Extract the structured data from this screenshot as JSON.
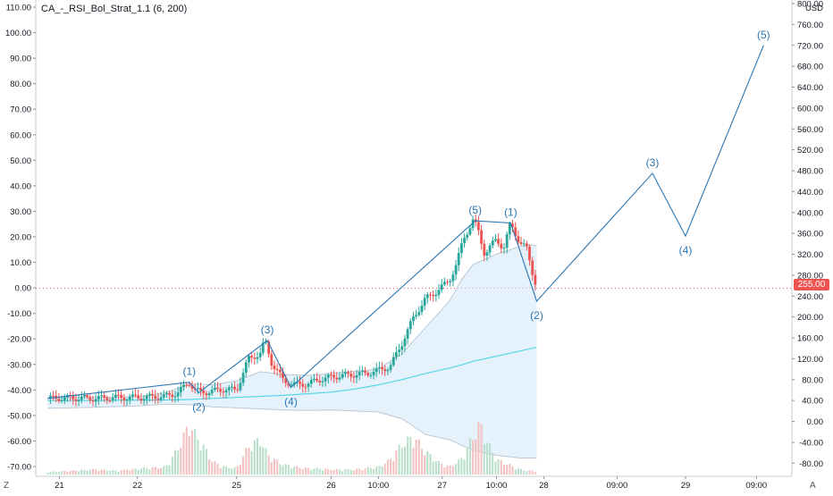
{
  "study_title": "CA_-_RSI_Bol_Strat_1.1 (6, 200)",
  "corner_left": "Z",
  "corner_right": "A",
  "colors": {
    "up": "#26a69a",
    "down": "#ef5350",
    "wave": "#2a75b3",
    "band_fill": "#cfe8f7",
    "band_line": "#bcc8d4",
    "ma200": "#55d6e6",
    "vol_up": "#b7dfc9",
    "vol_down": "#f5c0c0",
    "price_line": "#ef5350"
  },
  "chart_data": {
    "type": "candlestick",
    "title": "CA_-_RSI_Bol_Strat_1.1 (6, 200)",
    "right_axis": {
      "label": "USD",
      "ticks": [
        -80,
        -40,
        0,
        40,
        80,
        120,
        160,
        200,
        240,
        280,
        320,
        360,
        400,
        440,
        480,
        520,
        560,
        600,
        640,
        680,
        720,
        760,
        800
      ]
    },
    "left_axis": {
      "ticks": [
        -70,
        -60,
        -50,
        -40,
        -30,
        -20,
        -10,
        0,
        10,
        20,
        30,
        40,
        50,
        60,
        70,
        80,
        90,
        100,
        110
      ]
    },
    "left_axis_labels": [
      "-70.00",
      "-60.00",
      "-50.00",
      "-40.00",
      "-30.00",
      "-20.00",
      "-10.00",
      "0.00",
      "10.00",
      "20.00",
      "30.00",
      "40.00",
      "50.00",
      "60.00",
      "70.00",
      "80.00",
      "90.00",
      "100.00",
      "110.00"
    ],
    "right_axis_labels": [
      "-80.00",
      "-40.00",
      "0.00",
      "40.00",
      "80.00",
      "120.00",
      "160.00",
      "200.00",
      "240.00",
      "280.00",
      "320.00",
      "360.00",
      "400.00",
      "440.00",
      "480.00",
      "520.00",
      "560.00",
      "600.00",
      "640.00",
      "680.00",
      "720.00",
      "760.00",
      "800.00"
    ],
    "x_ticks": [
      {
        "label": "21",
        "t": 0.5
      },
      {
        "label": "22",
        "t": 3.8
      },
      {
        "label": "25",
        "t": 8.0
      },
      {
        "label": "26",
        "t": 12.0
      },
      {
        "label": "10:00",
        "t": 14.0
      },
      {
        "label": "27",
        "t": 16.7
      },
      {
        "label": "10:00",
        "t": 19.0
      },
      {
        "label": "28",
        "t": 21.0
      },
      {
        "label": "09:00",
        "t": 24.1
      },
      {
        "label": "29",
        "t": 27.0
      },
      {
        "label": "09:00",
        "t": 30.0
      }
    ],
    "last_price": "255.00",
    "last_price_value": 255,
    "elliott_waves": [
      {
        "label": "(1)",
        "t": 6.0,
        "price": 75
      },
      {
        "label": "(2)",
        "t": 6.4,
        "price": 55
      },
      {
        "label": "(3)",
        "t": 9.3,
        "price": 155
      },
      {
        "label": "(4)",
        "t": 10.3,
        "price": 65
      },
      {
        "label": "(5)",
        "t": 18.1,
        "price": 384
      },
      {
        "label": "(1)",
        "t": 19.6,
        "price": 380
      },
      {
        "label": "(2)",
        "t": 20.7,
        "price": 230
      },
      {
        "label": "(3)",
        "t": 25.6,
        "price": 475
      },
      {
        "label": "(4)",
        "t": 27.0,
        "price": 355
      },
      {
        "label": "(5)",
        "t": 30.3,
        "price": 720
      }
    ],
    "wave_label_positions": [
      "above",
      "below",
      "above",
      "below",
      "above",
      "above",
      "below",
      "above",
      "below",
      "above"
    ],
    "bands": {
      "t": [
        0,
        2,
        4,
        5,
        6,
        7,
        8,
        9,
        10,
        11,
        12,
        13,
        14,
        15,
        16,
        17,
        17.5,
        18,
        19,
        20,
        20.5,
        20.7
      ],
      "upper": [
        46,
        46,
        48,
        55,
        72,
        70,
        78,
        95,
        90,
        88,
        92,
        96,
        100,
        130,
        180,
        230,
        270,
        300,
        320,
        335,
        338,
        336
      ],
      "lower": [
        25,
        27,
        30,
        33,
        32,
        28,
        26,
        24,
        22,
        21,
        22,
        20,
        18,
        5,
        -25,
        -35,
        -45,
        -55,
        -65,
        -70,
        -70,
        -70
      ],
      "ma200": [
        40,
        40,
        41,
        41,
        42,
        44,
        46,
        48,
        50,
        53,
        56,
        62,
        70,
        80,
        92,
        102,
        108,
        115,
        125,
        135,
        140,
        142
      ]
    },
    "price_points": {
      "t": [
        0,
        1,
        2,
        3,
        4,
        5,
        5.5,
        6,
        6.2,
        6.5,
        7,
        7.5,
        8,
        8.5,
        9,
        9.2,
        9.5,
        10,
        10.5,
        11,
        11.5,
        12,
        12.5,
        13,
        13.5,
        14,
        14.5,
        15,
        15.5,
        16,
        16.5,
        17,
        17.3,
        17.6,
        18,
        18.2,
        18.5,
        19,
        19.3,
        19.6,
        20,
        20.3,
        20.5,
        20.7
      ],
      "price": [
        44,
        45,
        44,
        46,
        46,
        48,
        55,
        75,
        62,
        55,
        58,
        62,
        60,
        120,
        130,
        155,
        110,
        78,
        70,
        72,
        80,
        85,
        88,
        90,
        92,
        98,
        105,
        150,
        200,
        235,
        250,
        270,
        300,
        350,
        384,
        370,
        320,
        350,
        330,
        380,
        340,
        330,
        290,
        255
      ]
    },
    "volume_points": {
      "t": [
        0,
        1,
        2,
        3,
        4,
        5,
        5.5,
        6,
        6.3,
        6.6,
        7,
        7.5,
        8,
        8.5,
        9,
        9.3,
        9.6,
        10,
        10.5,
        11,
        12,
        13,
        14,
        14.5,
        15,
        15.5,
        16,
        16.5,
        17,
        17.5,
        18,
        18.3,
        18.6,
        19,
        19.5,
        20,
        20.5
      ],
      "height": [
        2,
        3,
        4,
        3,
        5,
        6,
        20,
        40,
        30,
        22,
        10,
        6,
        5,
        22,
        28,
        16,
        12,
        8,
        6,
        5,
        4,
        4,
        6,
        12,
        24,
        30,
        18,
        10,
        6,
        12,
        30,
        40,
        26,
        12,
        8,
        4,
        3
      ]
    }
  }
}
